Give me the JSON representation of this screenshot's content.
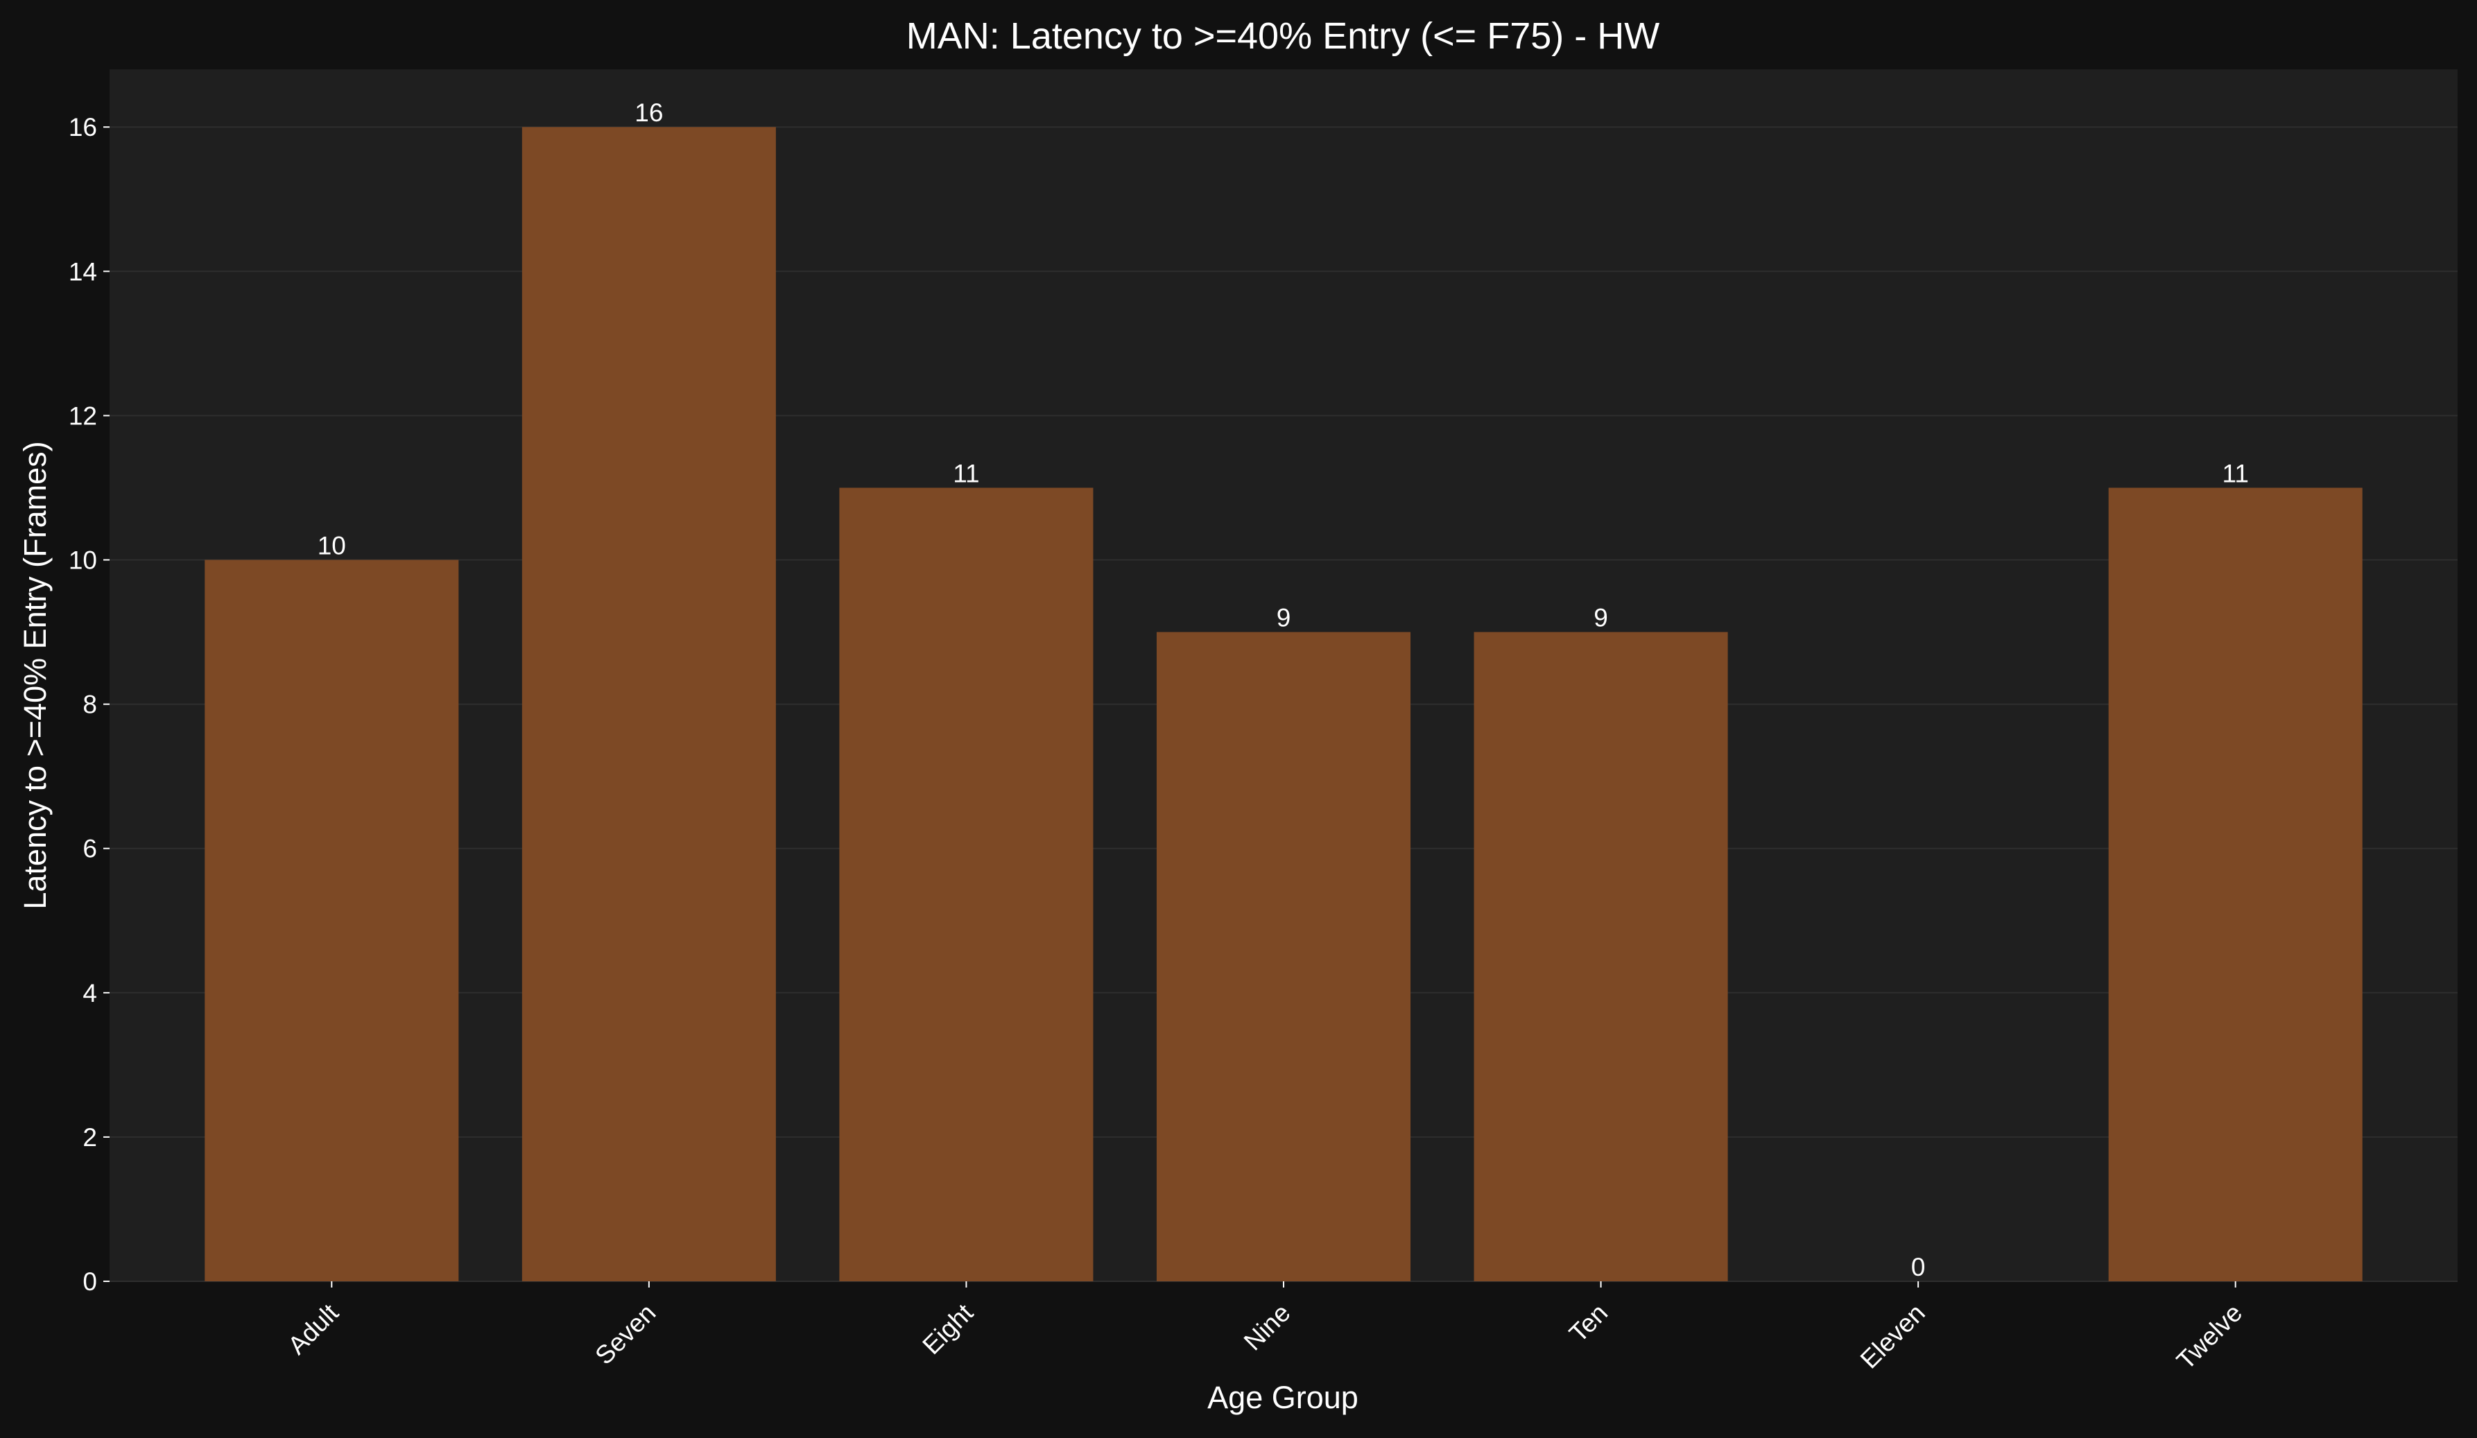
{
  "chart_data": {
    "type": "bar",
    "title": "MAN: Latency to >=40% Entry (<= F75) - HW",
    "xlabel": "Age Group",
    "ylabel": "Latency to >=40% Entry (Frames)",
    "categories": [
      "Adult",
      "Seven",
      "Eight",
      "Nine",
      "Ten",
      "Eleven",
      "Twelve"
    ],
    "values": [
      10,
      16,
      11,
      9,
      9,
      0,
      11
    ],
    "value_labels": [
      "10",
      "16",
      "11",
      "9",
      "9",
      "0",
      "11"
    ],
    "ylim": [
      0,
      16.8
    ],
    "yticks": [
      0,
      2,
      4,
      6,
      8,
      10,
      12,
      14,
      16
    ],
    "ytick_labels": [
      "0",
      "2",
      "4",
      "6",
      "8",
      "10",
      "12",
      "14",
      "16"
    ],
    "grid": true,
    "legend": "none",
    "colors": {
      "figure_background": "#111111",
      "plot_background": "#1f1f1f",
      "bar": "#7d4925",
      "grid": "#2e2e2e",
      "text": "#ffffff"
    }
  }
}
